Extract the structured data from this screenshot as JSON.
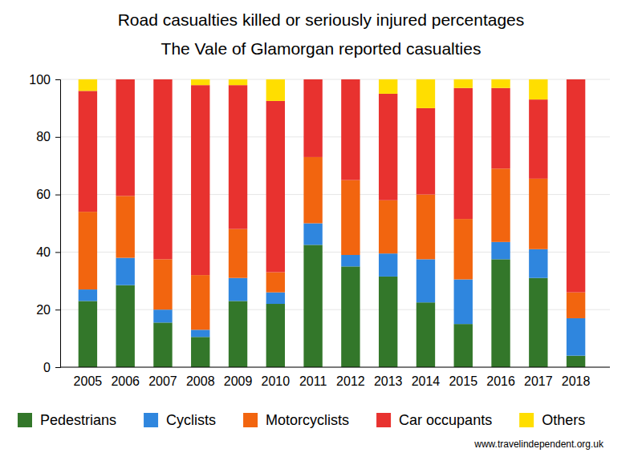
{
  "chart_data": {
    "type": "bar",
    "stacked": true,
    "title": "Road casualties killed or seriously injured percentages",
    "subtitle": "The Vale of Glamorgan reported casualties",
    "annotations": [
      "www.travelindependent.org.uk"
    ],
    "categories": [
      "2005",
      "2006",
      "2007",
      "2008",
      "2009",
      "2010",
      "2011",
      "2012",
      "2013",
      "2014",
      "2015",
      "2016",
      "2017",
      "2018"
    ],
    "series": [
      {
        "name": "Pedestrians",
        "color": "#33772a",
        "values": [
          23,
          28.5,
          15.5,
          10.5,
          23,
          22,
          42.5,
          35,
          31.5,
          22.5,
          15,
          37.5,
          31,
          4
        ]
      },
      {
        "name": "Cyclists",
        "color": "#2f86de",
        "values": [
          4,
          9.5,
          4.5,
          2.5,
          8,
          4,
          7.5,
          4,
          8,
          15,
          15.5,
          6,
          10,
          13
        ]
      },
      {
        "name": "Motorcyclists",
        "color": "#f2650f",
        "values": [
          27,
          21.5,
          17.5,
          19,
          17,
          7,
          23,
          26,
          18.5,
          22.5,
          21,
          25.5,
          24.5,
          9
        ]
      },
      {
        "name": "Car occupants",
        "color": "#e8322f",
        "values": [
          42,
          40.5,
          62.5,
          66,
          50,
          59.5,
          27,
          35,
          37,
          30,
          45.5,
          28,
          27.5,
          74
        ]
      },
      {
        "name": "Others",
        "color": "#ffde00",
        "values": [
          4,
          0,
          0,
          2,
          2,
          7.5,
          0,
          0,
          5,
          10,
          3,
          3,
          7,
          0
        ]
      }
    ],
    "ylim": [
      0,
      100
    ],
    "yticks": [
      0,
      20,
      40,
      60,
      80,
      100
    ],
    "grid": true,
    "legend": "bottom"
  }
}
